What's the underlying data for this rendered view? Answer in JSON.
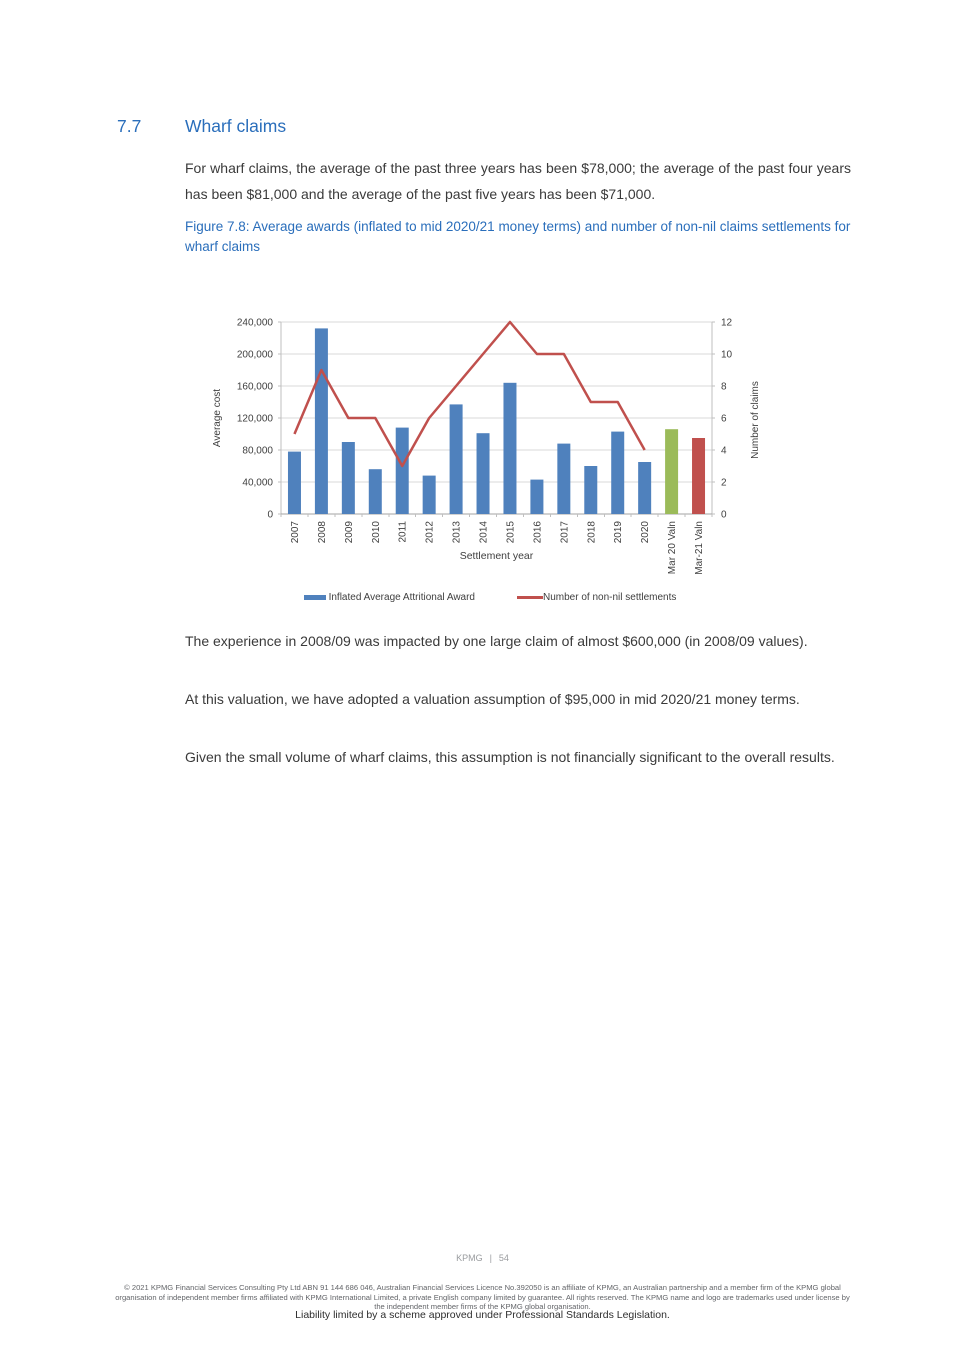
{
  "section": {
    "number": "7.7",
    "title": "Wharf claims",
    "intro": "For wharf claims, the average of the past three years has been $78,000; the average of the past four years has been $81,000 and the average of the past five years has been $71,000.",
    "paragraph_experience": "The experience in 2008/09 was impacted by one large claim of almost $600,000 (in 2008/09 values).",
    "paragraph_valuation": "At this valuation, we have adopted a valuation assumption of $95,000 in mid 2020/21 money terms.",
    "paragraph_significance": "Given the small volume of wharf claims, this assumption is not financially significant to the overall results."
  },
  "figure": {
    "caption": "Figure 7.8: Average awards (inflated to mid 2020/21 money terms) and number of non-nil claims settlements for wharf claims"
  },
  "chart_data": {
    "type": "bar",
    "subtype": "bar+line combo, dual axis",
    "categories": [
      "2007",
      "2008",
      "2009",
      "2010",
      "2011",
      "2012",
      "2013",
      "2014",
      "2015",
      "2016",
      "2017",
      "2018",
      "2019",
      "2020",
      "Mar 20 Valn",
      "Mar-21 Valn"
    ],
    "series": [
      {
        "name": "Inflated Average Attritional Award",
        "type": "bar",
        "axis": "left",
        "values": [
          78000,
          232000,
          90000,
          56000,
          108000,
          48000,
          137000,
          101000,
          164000,
          43000,
          88000,
          60000,
          103000,
          65000,
          106000,
          95000
        ]
      },
      {
        "name": "Number of non-nil settlements",
        "type": "line",
        "axis": "right",
        "values": [
          5,
          9,
          6,
          6,
          3,
          6,
          8,
          10,
          12,
          10,
          10,
          7,
          7,
          4,
          null,
          null
        ]
      }
    ],
    "xlabel": "Settlement year",
    "left_axis": {
      "label": "Average cost",
      "min": 0,
      "max": 240000,
      "step": 40000
    },
    "right_axis": {
      "label": "Number of claims",
      "min": 0,
      "max": 12,
      "step": 2
    },
    "grid": "horizontal only",
    "legend_position": "bottom center",
    "colors": {
      "bar": "#4F81BD",
      "line": "#C0504D",
      "bar_overrides": {
        "Mar 20 Valn": "#9BBB59",
        "Mar-21 Valn": "#C0504D"
      },
      "gridline": "#D9D9D9",
      "axis": "#BFBFBF",
      "text": "#3F3F3F"
    }
  },
  "footer": {
    "brand": "KPMG",
    "separator": "|",
    "page_number": "54",
    "legal": "© 2021 KPMG Financial Services Consulting Pty Ltd ABN 91 144 686 046, Australian Financial Services Licence No.392050 is an affiliate of KPMG, an Australian partnership and a member firm of the KPMG global organisation of independent member firms affiliated with KPMG International Limited, a private English company limited by guarantee. All rights reserved. The KPMG name and logo are trademarks used under license by the independent member firms of the KPMG global organisation.",
    "liability": "Liability limited by a scheme approved under Professional Standards Legislation."
  }
}
